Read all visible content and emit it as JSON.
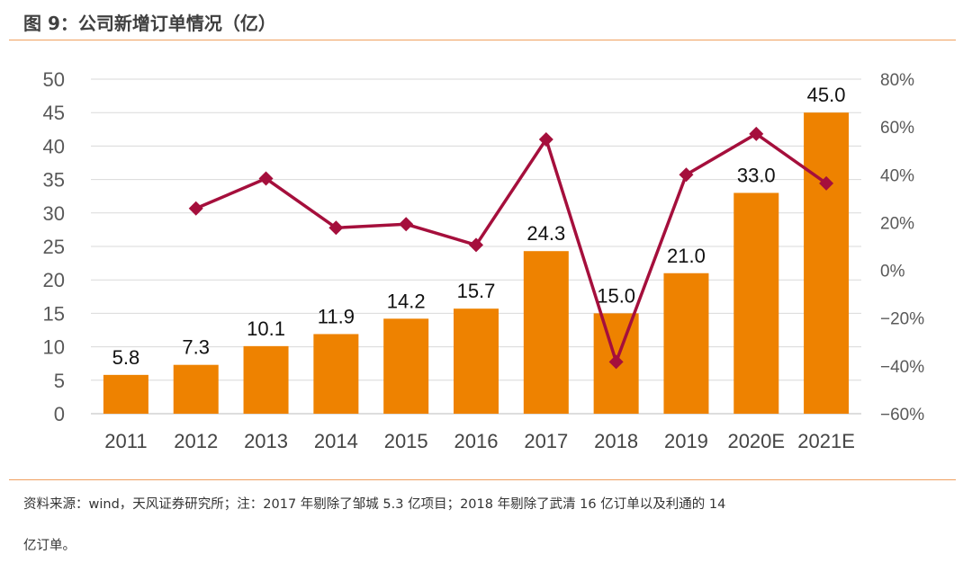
{
  "title": "图 9：公司新增订单情况（亿）",
  "source_line1": "资料来源：wind，天风证券研究所；注：2017 年剔除了邹城 5.3 亿项目；2018 年剔除了武清 16 亿订单以及利通的 14",
  "source_line2": "亿订单。",
  "chart_data": {
    "type": "bar+line",
    "categories": [
      "2011",
      "2012",
      "2013",
      "2014",
      "2015",
      "2016",
      "2017",
      "2018",
      "2019",
      "2020E",
      "2021E"
    ],
    "series": [
      {
        "type": "bar",
        "axis": "left",
        "color": "#ee8200",
        "values": [
          5.8,
          7.3,
          10.1,
          11.9,
          14.2,
          15.7,
          24.3,
          15.0,
          21.0,
          33.0,
          45.0
        ],
        "labels": [
          "5.8",
          "7.3",
          "10.1",
          "11.9",
          "14.2",
          "15.7",
          "24.3",
          "15.0",
          "21.0",
          "33.0",
          "45.0"
        ]
      },
      {
        "type": "line",
        "axis": "right",
        "color": "#a50f3c",
        "marker": "diamond",
        "values": [
          null,
          25.9,
          38.4,
          17.8,
          19.3,
          10.6,
          54.8,
          -38.3,
          40.0,
          57.1,
          36.4
        ]
      }
    ],
    "ylim_left": [
      0,
      50
    ],
    "yticks_left": [
      "0",
      "5",
      "10",
      "15",
      "20",
      "25",
      "30",
      "35",
      "40",
      "45",
      "50"
    ],
    "ylim_right": [
      -60,
      80
    ],
    "yticks_right": [
      "-60%",
      "-40%",
      "-20%",
      "0%",
      "20%",
      "40%",
      "60%",
      "80%"
    ],
    "grid": true
  }
}
